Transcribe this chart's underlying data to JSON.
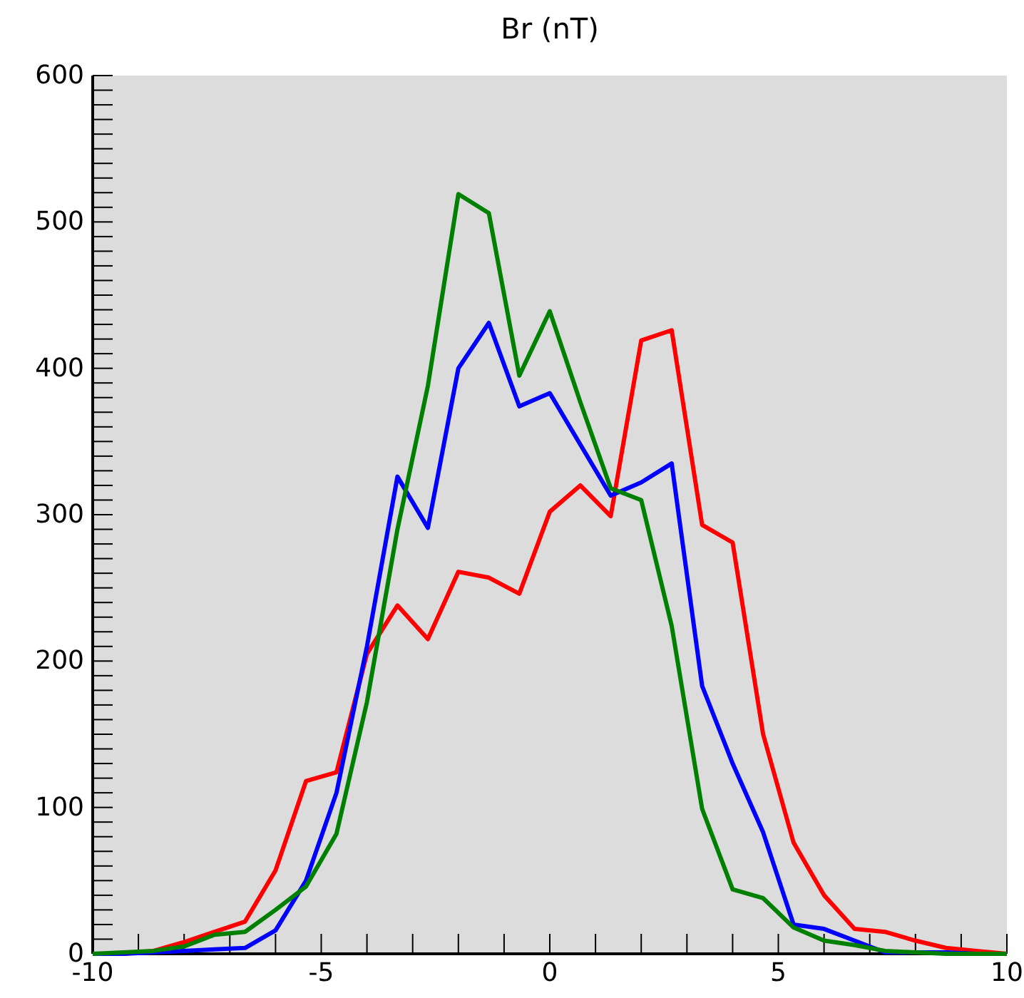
{
  "chart_data": {
    "type": "line",
    "title": "Br (nT)",
    "x": [
      -10,
      -9.333,
      -8.667,
      -8,
      -7.333,
      -6.667,
      -6,
      -5.333,
      -4.667,
      -4,
      -3.333,
      -2.667,
      -2,
      -1.333,
      -0.667,
      0,
      0.667,
      1.333,
      2,
      2.667,
      3.333,
      4,
      4.667,
      5.333,
      6,
      6.667,
      7.333,
      8,
      8.667,
      9.333,
      10
    ],
    "series": [
      {
        "color": "#ff0000",
        "values": [
          0,
          0,
          2,
          8,
          15,
          22,
          57,
          118,
          124,
          205,
          238,
          215,
          261,
          257,
          246,
          302,
          320,
          299,
          419,
          426,
          293,
          281,
          150,
          76,
          40,
          17,
          15,
          9,
          4,
          2,
          0
        ]
      },
      {
        "color": "#0000ff",
        "values": [
          0,
          0,
          1,
          2,
          3,
          4,
          16,
          50,
          110,
          210,
          326,
          291,
          400,
          431,
          374,
          383,
          348,
          313,
          322,
          335,
          183,
          130,
          83,
          20,
          17,
          9,
          1,
          1,
          1,
          0,
          0
        ]
      },
      {
        "color": "#008000",
        "values": [
          0,
          1,
          2,
          5,
          13,
          15,
          30,
          46,
          82,
          172,
          290,
          388,
          519,
          506,
          395,
          439,
          377,
          318,
          310,
          224,
          99,
          44,
          38,
          18,
          9,
          6,
          2,
          1,
          0,
          0,
          0
        ]
      }
    ],
    "xlim": [
      -10,
      10
    ],
    "xticks": [
      -10,
      {
        "value": -9,
        "label": null
      },
      {
        "value": -8,
        "label": null
      },
      {
        "value": -7,
        "label": null
      },
      {
        "value": -6,
        "label": null
      },
      -5,
      {
        "value": -4,
        "label": null
      },
      {
        "value": -3,
        "label": null
      },
      {
        "value": -2,
        "label": null
      },
      {
        "value": -1,
        "label": null
      },
      0,
      {
        "value": 1,
        "label": null
      },
      {
        "value": 2,
        "label": null
      },
      {
        "value": 3,
        "label": null
      },
      {
        "value": 4,
        "label": null
      },
      5,
      {
        "value": 6,
        "label": null
      },
      {
        "value": 7,
        "label": null
      },
      {
        "value": 8,
        "label": null
      },
      {
        "value": 9,
        "label": null
      },
      10
    ],
    "ylim": [
      0,
      600
    ],
    "yticks": [
      0,
      {
        "value": 10,
        "label": null
      },
      {
        "value": 20,
        "label": null
      },
      {
        "value": 30,
        "label": null
      },
      {
        "value": 40,
        "label": null
      },
      {
        "value": 50,
        "label": null
      },
      {
        "value": 60,
        "label": null
      },
      {
        "value": 70,
        "label": null
      },
      {
        "value": 80,
        "label": null
      },
      {
        "value": 90,
        "label": null
      },
      100,
      {
        "value": 110,
        "label": null
      },
      {
        "value": 120,
        "label": null
      },
      {
        "value": 130,
        "label": null
      },
      {
        "value": 140,
        "label": null
      },
      {
        "value": 150,
        "label": null
      },
      {
        "value": 160,
        "label": null
      },
      {
        "value": 170,
        "label": null
      },
      {
        "value": 180,
        "label": null
      },
      {
        "value": 190,
        "label": null
      },
      200,
      {
        "value": 210,
        "label": null
      },
      {
        "value": 220,
        "label": null
      },
      {
        "value": 230,
        "label": null
      },
      {
        "value": 240,
        "label": null
      },
      {
        "value": 250,
        "label": null
      },
      {
        "value": 260,
        "label": null
      },
      {
        "value": 270,
        "label": null
      },
      {
        "value": 280,
        "label": null
      },
      {
        "value": 290,
        "label": null
      },
      300,
      {
        "value": 310,
        "label": null
      },
      {
        "value": 320,
        "label": null
      },
      {
        "value": 330,
        "label": null
      },
      {
        "value": 340,
        "label": null
      },
      {
        "value": 350,
        "label": null
      },
      {
        "value": 360,
        "label": null
      },
      {
        "value": 370,
        "label": null
      },
      {
        "value": 380,
        "label": null
      },
      {
        "value": 390,
        "label": null
      },
      400,
      {
        "value": 410,
        "label": null
      },
      {
        "value": 420,
        "label": null
      },
      {
        "value": 430,
        "label": null
      },
      {
        "value": 440,
        "label": null
      },
      {
        "value": 450,
        "label": null
      },
      {
        "value": 460,
        "label": null
      },
      {
        "value": 470,
        "label": null
      },
      {
        "value": 480,
        "label": null
      },
      {
        "value": 490,
        "label": null
      },
      500,
      {
        "value": 510,
        "label": null
      },
      {
        "value": 520,
        "label": null
      },
      {
        "value": 530,
        "label": null
      },
      {
        "value": 540,
        "label": null
      },
      {
        "value": 550,
        "label": null
      },
      {
        "value": 560,
        "label": null
      },
      {
        "value": 570,
        "label": null
      },
      {
        "value": 580,
        "label": null
      },
      {
        "value": 590,
        "label": null
      },
      600
    ],
    "marker": "none",
    "line_style": "solid",
    "grid": false,
    "legend": false
  }
}
